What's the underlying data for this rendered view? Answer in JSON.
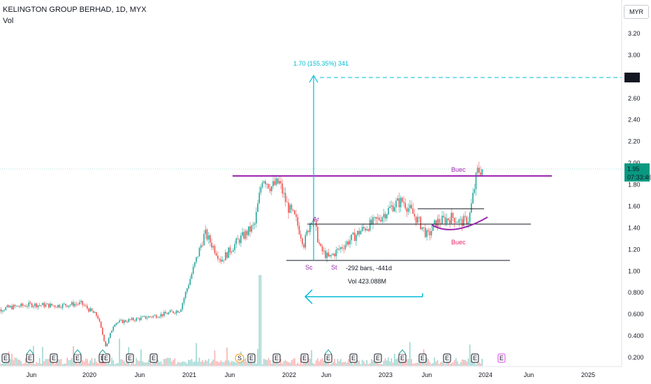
{
  "header": {
    "title": "KELINGTON GROUP BERHAD, 1D, MYX",
    "indicator": "Vol",
    "currency": "MYR"
  },
  "chart_data": {
    "type": "line",
    "price_axis_ticks": [
      "3.20",
      "3.00",
      "2.80",
      "2.60",
      "2.40",
      "2.20",
      "2.00",
      "1.80",
      "1.60",
      "1.40",
      "1.20",
      "1.00",
      "0.800",
      "0.600",
      "0.400",
      "0.200"
    ],
    "x_ticks": [
      "Jun",
      "2020",
      "Jun",
      "2021",
      "Jun",
      "2022",
      "Jun",
      "2023",
      "Jun",
      "2024",
      "Jun",
      "2025"
    ],
    "ylim": [
      0.12,
      3.3
    ],
    "x": [
      "2019-01",
      "2019-03",
      "2019-06",
      "2019-09",
      "2019-12",
      "2020-02",
      "2020-03",
      "2020-04",
      "2020-07",
      "2020-10",
      "2020-12",
      "2021-01",
      "2021-02",
      "2021-03",
      "2021-05",
      "2021-07",
      "2021-09",
      "2021-10",
      "2021-11",
      "2021-12",
      "2022-01",
      "2022-02",
      "2022-03",
      "2022-04",
      "2022-05",
      "2022-06",
      "2022-08",
      "2022-10",
      "2022-12",
      "2023-02",
      "2023-03",
      "2023-05",
      "2023-06",
      "2023-07",
      "2023-09",
      "2023-10",
      "2023-11",
      "2023-12",
      "2023-12-20"
    ],
    "close": [
      0.62,
      0.66,
      0.69,
      0.68,
      0.7,
      0.58,
      0.3,
      0.52,
      0.56,
      0.6,
      0.64,
      0.88,
      1.12,
      1.35,
      1.1,
      1.28,
      1.42,
      1.88,
      1.78,
      1.82,
      1.6,
      1.48,
      1.25,
      1.52,
      1.2,
      1.12,
      1.25,
      1.38,
      1.48,
      1.62,
      1.65,
      1.45,
      1.32,
      1.45,
      1.5,
      1.45,
      1.48,
      1.92,
      1.95
    ],
    "last_price": "1.95",
    "last_price_time": "07:33:46",
    "target_price": "2.80",
    "annotations": {
      "measure": "1.70 (155.35%) 341",
      "bars_label": "-292 bars, -441d",
      "vol_label": "Vol 423.088M",
      "buec_top": "Buec",
      "buec_bottom": "Buec",
      "ar": "Ar",
      "sc": "Sc",
      "st": "St"
    },
    "levels": {
      "resistance": 1.9,
      "ar_line": 1.44,
      "support": 1.11,
      "handle_top": 1.58,
      "target": 2.8
    },
    "events": [
      "E",
      "E",
      "E",
      "E",
      "E",
      "E",
      "E",
      "E",
      "S",
      "E",
      "E",
      "E",
      "E",
      "E",
      "E",
      "E",
      "E",
      "E",
      "E",
      "E",
      "E",
      "E"
    ],
    "colors": {
      "up": "#26a69a",
      "down": "#ef5350",
      "accent": "#00bcd4",
      "purple": "#9c27b0",
      "magenta": "#e91e63",
      "last_bg": "#089981"
    },
    "grid": false
  }
}
